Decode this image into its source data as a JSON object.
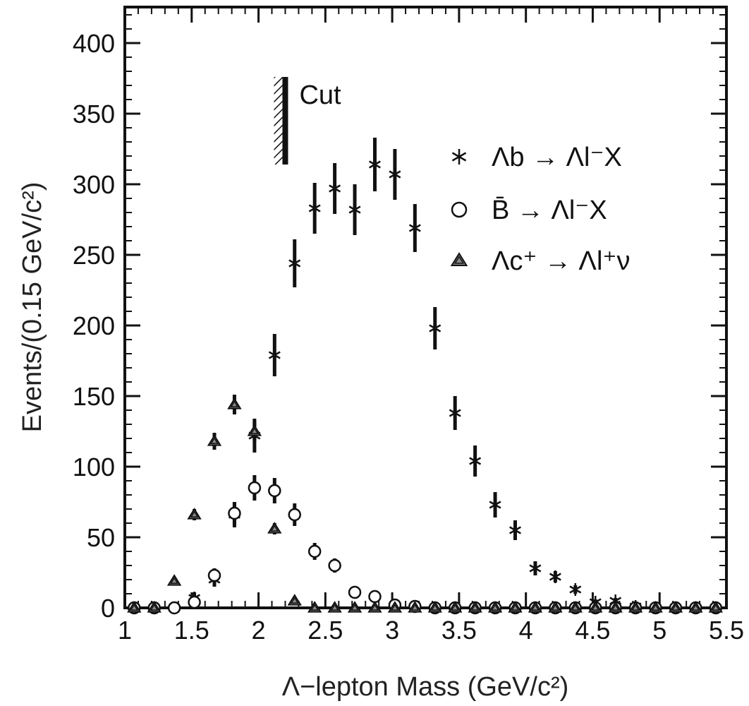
{
  "chart_data": {
    "type": "scatter",
    "title": "",
    "xlabel": "Λ−lepton Mass  (GeV/c²)",
    "ylabel": "Events/(0.15 GeV/c²)",
    "xlim": [
      1,
      5.5
    ],
    "ylim": [
      0,
      420
    ],
    "xticks": [
      1,
      1.5,
      2,
      2.5,
      3,
      3.5,
      4,
      4.5,
      5,
      5.5
    ],
    "xtick_labels": [
      "1",
      "1.5",
      "2",
      "2.5",
      "3",
      "3.5",
      "4",
      "4.5",
      "5",
      "5.5"
    ],
    "yticks": [
      0,
      50,
      100,
      150,
      200,
      250,
      300,
      350,
      400
    ],
    "ytick_labels": [
      "0",
      "50",
      "100",
      "150",
      "200",
      "250",
      "300",
      "350",
      "400"
    ],
    "grid": false,
    "legend_position": "right",
    "annotation": {
      "text": "Cut",
      "x": 2.2,
      "y_range": [
        314,
        376
      ]
    },
    "series": [
      {
        "name": "Λb → Λl⁻X",
        "marker": "star",
        "points": [
          {
            "x": 1.07,
            "y": 0,
            "err": 0
          },
          {
            "x": 1.22,
            "y": 0,
            "err": 0
          },
          {
            "x": 1.37,
            "y": 0,
            "err": 0
          },
          {
            "x": 1.52,
            "y": 7,
            "err": 4
          },
          {
            "x": 1.67,
            "y": 20,
            "err": 5
          },
          {
            "x": 1.82,
            "y": 66,
            "err": 9
          },
          {
            "x": 1.97,
            "y": 122,
            "err": 12
          },
          {
            "x": 2.12,
            "y": 179,
            "err": 15
          },
          {
            "x": 2.27,
            "y": 244,
            "err": 17
          },
          {
            "x": 2.42,
            "y": 283,
            "err": 18
          },
          {
            "x": 2.57,
            "y": 297,
            "err": 18
          },
          {
            "x": 2.72,
            "y": 282,
            "err": 18
          },
          {
            "x": 2.87,
            "y": 314,
            "err": 19
          },
          {
            "x": 3.02,
            "y": 307,
            "err": 18
          },
          {
            "x": 3.17,
            "y": 269,
            "err": 17
          },
          {
            "x": 3.32,
            "y": 198,
            "err": 15
          },
          {
            "x": 3.47,
            "y": 138,
            "err": 12
          },
          {
            "x": 3.62,
            "y": 104,
            "err": 11
          },
          {
            "x": 3.77,
            "y": 73,
            "err": 9
          },
          {
            "x": 3.92,
            "y": 55,
            "err": 7
          },
          {
            "x": 4.07,
            "y": 28,
            "err": 5
          },
          {
            "x": 4.22,
            "y": 22,
            "err": 4
          },
          {
            "x": 4.37,
            "y": 13,
            "err": 3
          },
          {
            "x": 4.52,
            "y": 4,
            "err": 2
          },
          {
            "x": 4.67,
            "y": 5,
            "err": 2
          },
          {
            "x": 4.82,
            "y": 1,
            "err": 0
          },
          {
            "x": 4.97,
            "y": 0,
            "err": 0
          },
          {
            "x": 5.12,
            "y": 0,
            "err": 0
          },
          {
            "x": 5.27,
            "y": 0,
            "err": 0
          },
          {
            "x": 5.42,
            "y": 0,
            "err": 0
          }
        ]
      },
      {
        "name": "B̄ → Λl⁻X",
        "marker": "circle",
        "points": [
          {
            "x": 1.07,
            "y": 0,
            "err": 0
          },
          {
            "x": 1.22,
            "y": 0,
            "err": 0
          },
          {
            "x": 1.37,
            "y": 0,
            "err": 0
          },
          {
            "x": 1.52,
            "y": 4,
            "err": 2
          },
          {
            "x": 1.67,
            "y": 23,
            "err": 5
          },
          {
            "x": 1.82,
            "y": 67,
            "err": 8
          },
          {
            "x": 1.97,
            "y": 85,
            "err": 9
          },
          {
            "x": 2.12,
            "y": 83,
            "err": 9
          },
          {
            "x": 2.27,
            "y": 66,
            "err": 8
          },
          {
            "x": 2.42,
            "y": 40,
            "err": 6
          },
          {
            "x": 2.57,
            "y": 30,
            "err": 5
          },
          {
            "x": 2.72,
            "y": 11,
            "err": 0
          },
          {
            "x": 2.87,
            "y": 8,
            "err": 0
          },
          {
            "x": 3.02,
            "y": 2,
            "err": 0
          },
          {
            "x": 3.17,
            "y": 1,
            "err": 0
          },
          {
            "x": 3.32,
            "y": 0,
            "err": 0
          },
          {
            "x": 3.47,
            "y": 0,
            "err": 0
          },
          {
            "x": 3.62,
            "y": 0,
            "err": 0
          },
          {
            "x": 3.77,
            "y": 0,
            "err": 0
          },
          {
            "x": 3.92,
            "y": 0,
            "err": 0
          },
          {
            "x": 4.07,
            "y": 0,
            "err": 0
          },
          {
            "x": 4.22,
            "y": 0,
            "err": 0
          },
          {
            "x": 4.37,
            "y": 0,
            "err": 0
          },
          {
            "x": 4.52,
            "y": 0,
            "err": 0
          },
          {
            "x": 4.67,
            "y": 0,
            "err": 0
          },
          {
            "x": 4.82,
            "y": 0,
            "err": 0
          },
          {
            "x": 4.97,
            "y": 0,
            "err": 0
          },
          {
            "x": 5.12,
            "y": 0,
            "err": 0
          },
          {
            "x": 5.27,
            "y": 0,
            "err": 0
          },
          {
            "x": 5.42,
            "y": 0,
            "err": 0
          }
        ]
      },
      {
        "name": "Λc⁺ → Λl⁺ν",
        "marker": "triangle",
        "points": [
          {
            "x": 1.07,
            "y": 0,
            "err": 0
          },
          {
            "x": 1.22,
            "y": 0,
            "err": 0
          },
          {
            "x": 1.37,
            "y": 19,
            "err": 0
          },
          {
            "x": 1.52,
            "y": 66,
            "err": 4
          },
          {
            "x": 1.67,
            "y": 118,
            "err": 6
          },
          {
            "x": 1.82,
            "y": 144,
            "err": 7
          },
          {
            "x": 1.97,
            "y": 125,
            "err": 7
          },
          {
            "x": 2.12,
            "y": 56,
            "err": 4
          },
          {
            "x": 2.27,
            "y": 5,
            "err": 0
          },
          {
            "x": 2.42,
            "y": 0,
            "err": 0
          },
          {
            "x": 2.57,
            "y": 0,
            "err": 0
          },
          {
            "x": 2.72,
            "y": 0,
            "err": 0
          },
          {
            "x": 2.87,
            "y": 0,
            "err": 0
          },
          {
            "x": 3.02,
            "y": 0,
            "err": 0
          },
          {
            "x": 3.17,
            "y": 0,
            "err": 0
          },
          {
            "x": 3.32,
            "y": 0,
            "err": 0
          },
          {
            "x": 3.47,
            "y": 0,
            "err": 0
          },
          {
            "x": 3.62,
            "y": 0,
            "err": 0
          },
          {
            "x": 3.77,
            "y": 0,
            "err": 0
          },
          {
            "x": 3.92,
            "y": 0,
            "err": 0
          },
          {
            "x": 4.07,
            "y": 0,
            "err": 0
          },
          {
            "x": 4.22,
            "y": 0,
            "err": 0
          },
          {
            "x": 4.37,
            "y": 0,
            "err": 0
          },
          {
            "x": 4.52,
            "y": 0,
            "err": 0
          },
          {
            "x": 4.67,
            "y": 0,
            "err": 0
          },
          {
            "x": 4.82,
            "y": 0,
            "err": 0
          },
          {
            "x": 4.97,
            "y": 0,
            "err": 0
          },
          {
            "x": 5.12,
            "y": 0,
            "err": 0
          },
          {
            "x": 5.27,
            "y": 0,
            "err": 0
          },
          {
            "x": 5.42,
            "y": 0,
            "err": 0
          }
        ]
      }
    ]
  },
  "colors": {
    "ink": "#111111",
    "triangle_fill": "#888888",
    "background": "#ffffff"
  }
}
